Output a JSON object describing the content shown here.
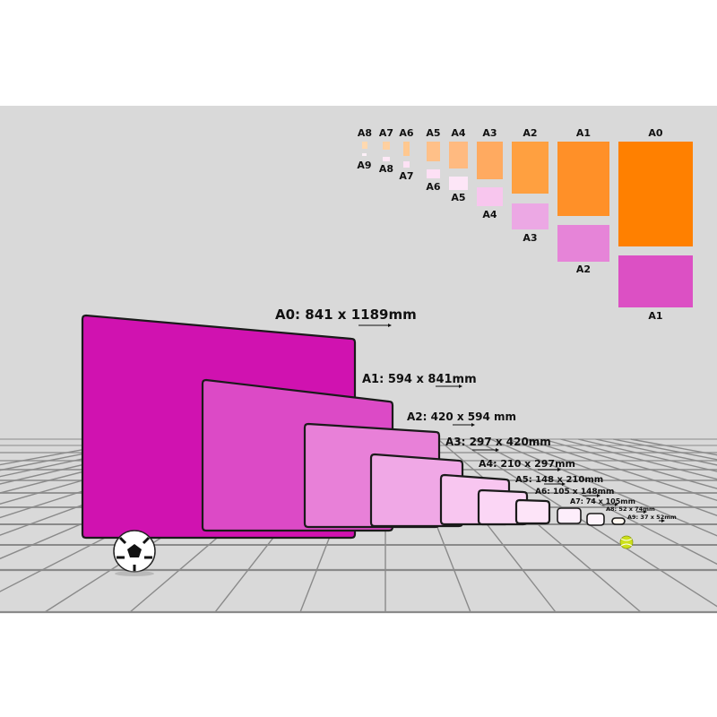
{
  "colors": {
    "background": "#d9d9d9",
    "grid": "#8a8a8a",
    "a0": "#d012b0",
    "orange": "#ff8000"
  },
  "overview": {
    "top_labels": [
      "A8",
      "A7",
      "A6",
      "A5",
      "A4",
      "A3",
      "A2",
      "A1",
      "A0"
    ],
    "bottom_labels": [
      "A9",
      "A8",
      "A7",
      "A6",
      "A5",
      "A4",
      "A3",
      "A2",
      "A1"
    ]
  },
  "sheets": [
    {
      "label": "A0: 841 x 1189mm",
      "color": "#d012b0"
    },
    {
      "label": "A1: 594 x 841mm",
      "color": "#dc4ac6"
    },
    {
      "label": "A2: 420 x 594 mm",
      "color": "#e880d8"
    },
    {
      "label": "A3: 297 x 420mm",
      "color": "#f0a8e6"
    },
    {
      "label": "A4: 210 x 297mm",
      "color": "#f8c6f0"
    },
    {
      "label": "A5: 148 x 210mm",
      "color": "#fbd6f5"
    },
    {
      "label": "A6: 105 x 148mm",
      "color": "#fde4f8"
    },
    {
      "label": "A7: 74 x 105mm",
      "color": "#fdeefb"
    },
    {
      "label": "A8: 52 x 74mm",
      "color": "#fef4fc"
    },
    {
      "label": "A9: 37 x 52mm",
      "color": "#fff8f0"
    }
  ],
  "objects": {
    "soccer_ball": "soccer-ball-icon",
    "tennis_ball": "tennis-ball-icon"
  }
}
